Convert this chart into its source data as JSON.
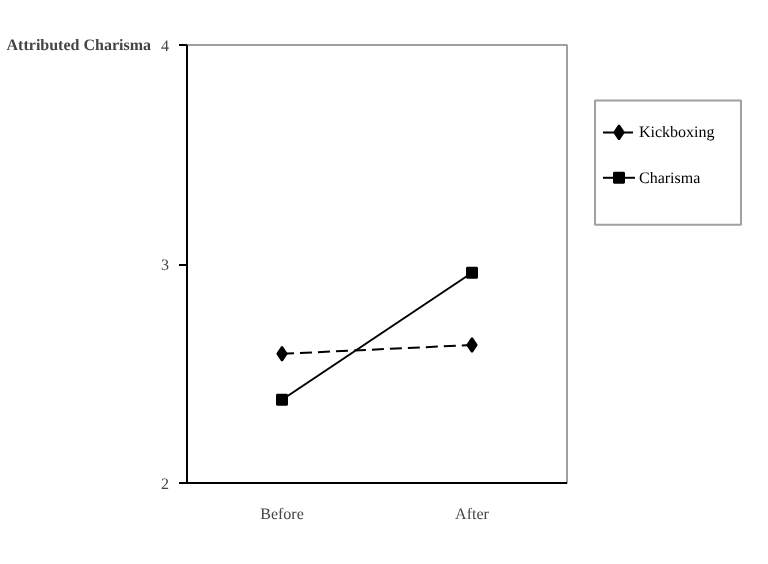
{
  "chart_data": {
    "type": "line",
    "ylabel": "Attributed Charisma",
    "categories": [
      "Before",
      "After"
    ],
    "series": [
      {
        "name": "Kickboxing",
        "color": "#000000",
        "values": [
          2.59,
          2.63
        ],
        "marker": "diamond",
        "line_style": "dashed"
      },
      {
        "name": "Charisma",
        "color": "#000000",
        "values": [
          2.38,
          2.96
        ],
        "marker": "square",
        "line_style": "solid"
      }
    ],
    "ylim": [
      2,
      4
    ],
    "yticks": [
      2,
      3,
      4
    ],
    "grid": false,
    "legend": "right"
  }
}
